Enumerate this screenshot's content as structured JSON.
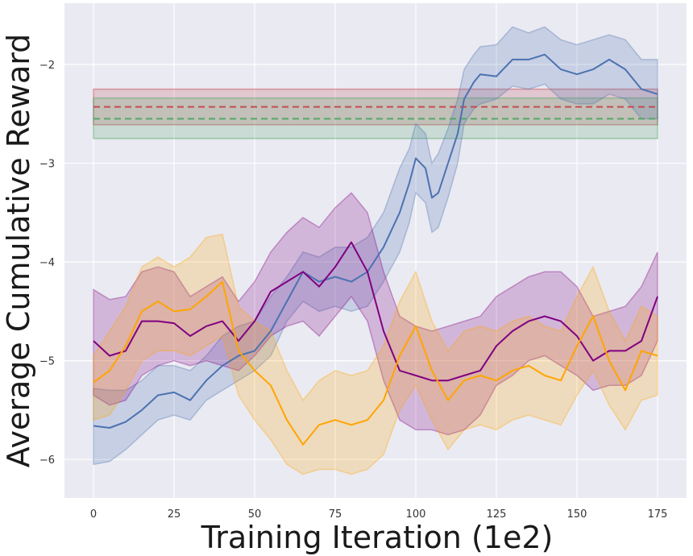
{
  "chart_data": {
    "type": "line",
    "title": "",
    "xlabel": "Training Iteration (1e2)",
    "ylabel": "Average Cumulative Reward",
    "xlim": [
      -9,
      184
    ],
    "ylim": [
      -6.39,
      -1.38
    ],
    "xticks": [
      0,
      25,
      50,
      75,
      100,
      125,
      150,
      175
    ],
    "yticks": [
      -6,
      -5,
      -4,
      -3,
      -2
    ],
    "grid": true,
    "background": "#eaeaf2",
    "series": [
      {
        "name": "blue",
        "color": "#4c72b0",
        "x": [
          0,
          5,
          10,
          15,
          20,
          25,
          30,
          35,
          40,
          45,
          50,
          55,
          60,
          65,
          70,
          75,
          80,
          85,
          90,
          95,
          98,
          100,
          103,
          105,
          107,
          110,
          113,
          115,
          118,
          120,
          125,
          130,
          135,
          140,
          145,
          150,
          155,
          160,
          165,
          170,
          175
        ],
        "mean": [
          -5.66,
          -5.68,
          -5.62,
          -5.5,
          -5.35,
          -5.32,
          -5.4,
          -5.2,
          -5.05,
          -4.95,
          -4.9,
          -4.7,
          -4.4,
          -4.1,
          -4.2,
          -4.15,
          -4.2,
          -4.1,
          -3.85,
          -3.5,
          -3.2,
          -2.95,
          -3.05,
          -3.35,
          -3.3,
          -3.0,
          -2.7,
          -2.35,
          -2.18,
          -2.1,
          -2.12,
          -1.95,
          -1.95,
          -1.9,
          -2.05,
          -2.1,
          -2.05,
          -1.95,
          -2.05,
          -2.25,
          -2.3
        ],
        "lower": [
          -6.05,
          -6.02,
          -5.9,
          -5.75,
          -5.6,
          -5.55,
          -5.6,
          -5.4,
          -5.3,
          -5.2,
          -5.1,
          -4.95,
          -4.6,
          -4.4,
          -4.5,
          -4.45,
          -4.5,
          -4.45,
          -4.2,
          -3.9,
          -3.6,
          -3.3,
          -3.4,
          -3.7,
          -3.65,
          -3.35,
          -3.0,
          -2.6,
          -2.45,
          -2.4,
          -2.35,
          -2.22,
          -2.25,
          -2.2,
          -2.35,
          -2.4,
          -2.4,
          -2.3,
          -2.35,
          -2.55,
          -2.55
        ],
        "upper": [
          -5.28,
          -5.3,
          -5.3,
          -5.2,
          -5.05,
          -5.05,
          -5.1,
          -4.95,
          -4.75,
          -4.65,
          -4.6,
          -4.35,
          -4.15,
          -3.9,
          -3.95,
          -3.85,
          -3.85,
          -3.75,
          -3.5,
          -3.05,
          -2.85,
          -2.6,
          -2.7,
          -3.0,
          -2.9,
          -2.65,
          -2.35,
          -2.05,
          -1.9,
          -1.82,
          -1.8,
          -1.62,
          -1.68,
          -1.62,
          -1.75,
          -1.8,
          -1.75,
          -1.7,
          -1.75,
          -1.95,
          -1.95
        ]
      },
      {
        "name": "purple",
        "color": "#800080",
        "x": [
          0,
          5,
          10,
          15,
          20,
          25,
          30,
          35,
          40,
          45,
          50,
          55,
          60,
          65,
          70,
          75,
          80,
          85,
          90,
          95,
          100,
          105,
          110,
          115,
          120,
          125,
          130,
          135,
          140,
          145,
          150,
          155,
          160,
          165,
          170,
          175
        ],
        "mean": [
          -4.8,
          -4.95,
          -4.9,
          -4.6,
          -4.6,
          -4.62,
          -4.75,
          -4.65,
          -4.6,
          -4.8,
          -4.6,
          -4.3,
          -4.2,
          -4.1,
          -4.25,
          -4.05,
          -3.8,
          -4.1,
          -4.7,
          -5.1,
          -5.15,
          -5.2,
          -5.2,
          -5.15,
          -5.1,
          -4.85,
          -4.7,
          -4.6,
          -4.55,
          -4.6,
          -4.75,
          -5.0,
          -4.9,
          -4.9,
          -4.8,
          -4.35
        ],
        "lower": [
          -5.35,
          -5.45,
          -5.4,
          -5.15,
          -5.05,
          -5.0,
          -5.05,
          -5.0,
          -5.05,
          -5.1,
          -4.95,
          -4.75,
          -4.65,
          -4.6,
          -4.75,
          -4.55,
          -4.35,
          -4.6,
          -5.2,
          -5.6,
          -5.7,
          -5.7,
          -5.75,
          -5.7,
          -5.55,
          -5.25,
          -5.15,
          -5.0,
          -4.95,
          -5.05,
          -5.15,
          -5.3,
          -5.25,
          -5.25,
          -5.15,
          -4.8
        ],
        "upper": [
          -4.28,
          -4.38,
          -4.35,
          -4.1,
          -4.05,
          -4.1,
          -4.35,
          -4.25,
          -4.15,
          -4.4,
          -4.2,
          -3.9,
          -3.7,
          -3.55,
          -3.65,
          -3.45,
          -3.3,
          -3.5,
          -4.1,
          -4.55,
          -4.65,
          -4.7,
          -4.65,
          -4.6,
          -4.55,
          -4.35,
          -4.25,
          -4.15,
          -4.1,
          -4.1,
          -4.25,
          -4.55,
          -4.5,
          -4.45,
          -4.25,
          -3.9
        ]
      },
      {
        "name": "orange",
        "color": "#ffa500",
        "x": [
          0,
          5,
          10,
          15,
          20,
          25,
          30,
          35,
          40,
          45,
          50,
          55,
          60,
          65,
          70,
          75,
          80,
          85,
          90,
          95,
          100,
          105,
          110,
          115,
          120,
          125,
          130,
          135,
          140,
          145,
          150,
          155,
          160,
          165,
          170,
          175
        ],
        "mean": [
          -5.22,
          -5.1,
          -4.85,
          -4.5,
          -4.4,
          -4.5,
          -4.48,
          -4.35,
          -4.2,
          -4.9,
          -5.1,
          -5.25,
          -5.6,
          -5.85,
          -5.65,
          -5.6,
          -5.65,
          -5.6,
          -5.4,
          -4.95,
          -4.65,
          -5.1,
          -5.4,
          -5.2,
          -5.15,
          -5.2,
          -5.1,
          -5.05,
          -5.15,
          -5.2,
          -4.85,
          -4.55,
          -5.0,
          -5.3,
          -4.9,
          -4.95
        ],
        "lower": [
          -5.6,
          -5.55,
          -5.3,
          -5.0,
          -4.9,
          -4.9,
          -4.95,
          -4.85,
          -4.75,
          -5.35,
          -5.6,
          -5.8,
          -6.05,
          -6.15,
          -6.1,
          -6.1,
          -6.15,
          -6.1,
          -5.95,
          -5.5,
          -5.25,
          -5.6,
          -5.9,
          -5.7,
          -5.65,
          -5.7,
          -5.6,
          -5.55,
          -5.6,
          -5.65,
          -5.35,
          -5.1,
          -5.45,
          -5.7,
          -5.4,
          -5.35
        ],
        "upper": [
          -4.95,
          -4.7,
          -4.45,
          -4.05,
          -3.95,
          -4.05,
          -3.95,
          -3.75,
          -3.72,
          -4.45,
          -4.6,
          -4.7,
          -5.1,
          -5.4,
          -5.2,
          -5.1,
          -5.15,
          -5.1,
          -4.85,
          -4.4,
          -4.1,
          -4.6,
          -4.9,
          -4.7,
          -4.65,
          -4.7,
          -4.6,
          -4.55,
          -4.65,
          -4.7,
          -4.35,
          -4.05,
          -4.5,
          -4.8,
          -4.45,
          -4.55
        ]
      }
    ],
    "reference_lines": [
      {
        "name": "red-baseline",
        "color": "#c44e52",
        "value": -2.43,
        "lower": -2.61,
        "upper": -2.25,
        "xmin": 0,
        "xmax": 175
      },
      {
        "name": "green-baseline",
        "color": "#55a868",
        "value": -2.55,
        "lower": -2.75,
        "upper": -2.34,
        "xmin": 0,
        "xmax": 175
      }
    ]
  }
}
